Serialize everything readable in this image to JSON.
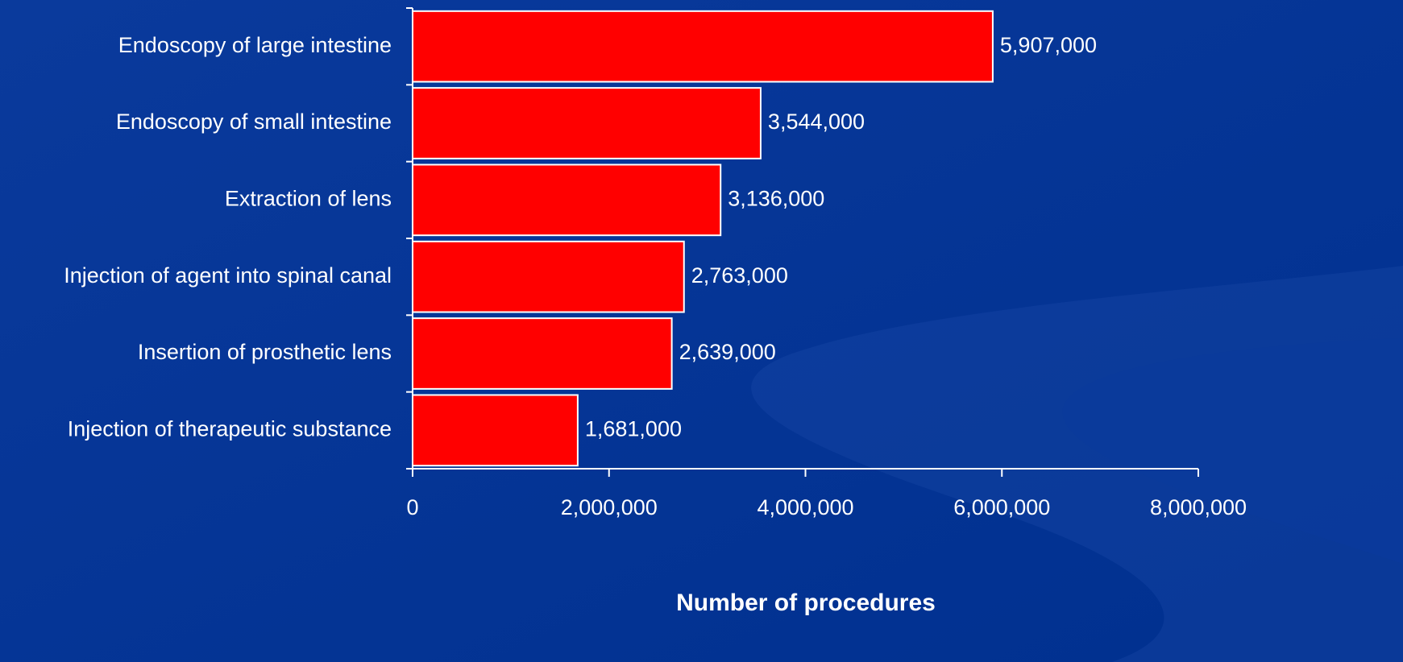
{
  "chart_data": {
    "type": "hbar",
    "xlabel": "Number of procedures",
    "categories": [
      "Endoscopy of large intestine",
      "Endoscopy of small intestine",
      "Extraction of lens",
      "Injection of agent into spinal canal",
      "Insertion of prosthetic lens",
      "Injection of therapeutic substance"
    ],
    "values": [
      5907000,
      3544000,
      3136000,
      2763000,
      2639000,
      1681000
    ],
    "value_labels": [
      "5,907,000",
      "3,544,000",
      "3,136,000",
      "2,763,000",
      "2,639,000",
      "1,681,000"
    ],
    "color": "#ff0000",
    "xlim": [
      0,
      8000000
    ],
    "xticks": [
      0,
      {
        "value": 2000000,
        "label": "2,000,000"
      },
      {
        "value": 4000000,
        "label": "4,000,000"
      },
      {
        "value": 6000000,
        "label": "6,000,000"
      },
      {
        "value": 8000000,
        "label": "8,000,000"
      }
    ],
    "grid": false
  }
}
